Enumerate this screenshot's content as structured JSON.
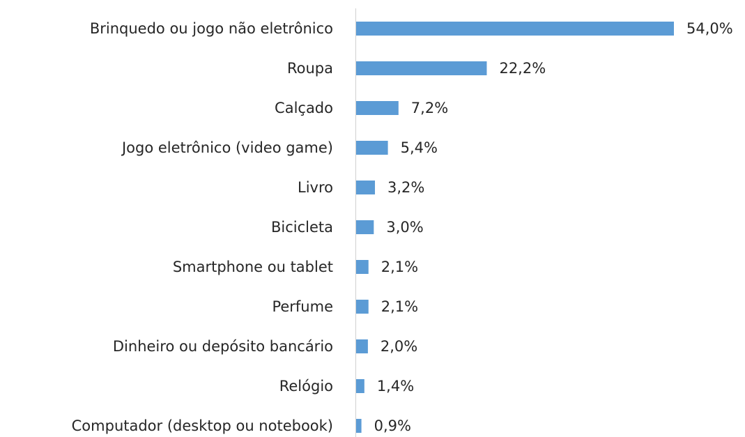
{
  "chart_data": {
    "type": "bar",
    "orientation": "horizontal",
    "categories": [
      "Brinquedo ou jogo não eletrônico",
      "Roupa",
      "Calçado",
      "Jogo eletrônico (video game)",
      "Livro",
      "Bicicleta",
      "Smartphone ou tablet",
      "Perfume",
      "Dinheiro ou depósito bancário",
      "Relógio",
      "Computador (desktop ou notebook)"
    ],
    "values": [
      54.0,
      22.2,
      7.2,
      5.4,
      3.2,
      3.0,
      2.1,
      2.1,
      2.0,
      1.4,
      0.9
    ],
    "value_labels": [
      "54,0%",
      "22,2%",
      "7,2%",
      "5,4%",
      "3,2%",
      "3,0%",
      "2,1%",
      "2,1%",
      "2,0%",
      "1,4%",
      "0,9%"
    ],
    "color": "#5b9bd5"
  }
}
